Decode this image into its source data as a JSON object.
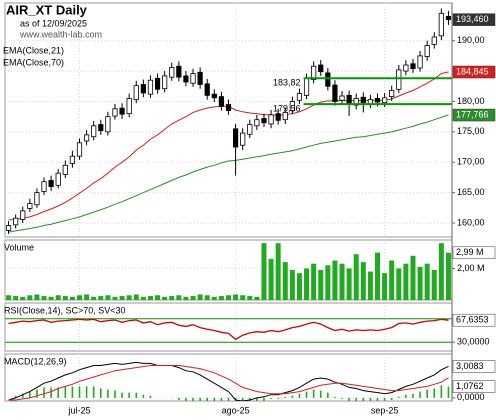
{
  "chart_data": [
    {
      "type": "candlestick",
      "title": "AIR_XT Daily",
      "subtitle": "as of 12/09/2025",
      "source": "www.wealth-lab.com",
      "categories": [
        null,
        null,
        null,
        null,
        null,
        null,
        null,
        null,
        null,
        null,
        "jul-25",
        null,
        null,
        null,
        null,
        null,
        null,
        null,
        null,
        null,
        null,
        null,
        null,
        null,
        null,
        null,
        null,
        null,
        null,
        null,
        null,
        null,
        "ago-25",
        null,
        null,
        null,
        null,
        null,
        null,
        null,
        null,
        null,
        null,
        null,
        null,
        null,
        null,
        null,
        null,
        null,
        null,
        null,
        null,
        "sep-25",
        null,
        null,
        null,
        null,
        null,
        null,
        null,
        null,
        null
      ],
      "open": [
        158.8,
        159.7,
        160.6,
        162.4,
        163.0,
        165.2,
        167.0,
        166.2,
        168.0,
        169.8,
        171.0,
        173.5,
        174.2,
        176.2,
        175.0,
        177.6,
        178.9,
        178.0,
        180.3,
        182.8,
        181.2,
        183.8,
        182.1,
        184.0,
        185.8,
        184.2,
        183.0,
        184.8,
        182.9,
        181.2,
        180.8,
        179.5,
        175.5,
        172.8,
        174.6,
        176.0,
        177.2,
        176.3,
        178.0,
        177.0,
        178.5,
        180.2,
        181.0,
        183.6,
        186.0,
        184.7,
        182.7,
        180.2,
        181.0,
        179.4,
        180.7,
        179.6,
        180.5,
        179.8,
        180.8,
        182.0,
        185.0,
        186.2,
        185.5,
        187.4,
        189.4,
        190.8,
        194.0
      ],
      "high": [
        160.3,
        161.4,
        162.7,
        164.0,
        165.7,
        167.5,
        167.8,
        168.9,
        170.3,
        171.9,
        173.9,
        175.3,
        176.8,
        177.0,
        178.3,
        179.6,
        179.7,
        181.3,
        183.4,
        183.6,
        184.3,
        184.6,
        185.0,
        186.4,
        186.6,
        185.0,
        185.4,
        185.6,
        183.7,
        182.0,
        181.6,
        180.3,
        176.3,
        175.6,
        177.0,
        177.8,
        178.0,
        178.6,
        178.8,
        179.0,
        180.8,
        182.1,
        184.6,
        186.6,
        186.8,
        185.5,
        183.5,
        181.7,
        181.8,
        181.3,
        181.5,
        181.1,
        181.3,
        181.4,
        182.6,
        186.0,
        186.8,
        187.0,
        188.3,
        190.0,
        191.4,
        195.3,
        194.9
      ],
      "low": [
        158.2,
        159.1,
        160.0,
        161.8,
        162.5,
        164.6,
        165.3,
        165.7,
        167.4,
        169.1,
        170.4,
        172.8,
        173.6,
        174.5,
        174.4,
        177.0,
        177.1,
        177.4,
        179.7,
        180.7,
        180.6,
        181.3,
        181.5,
        183.4,
        183.3,
        182.5,
        182.4,
        182.1,
        180.3,
        179.9,
        178.5,
        177.8,
        167.8,
        172.0,
        174.0,
        175.3,
        175.8,
        175.6,
        176.2,
        176.3,
        177.9,
        179.6,
        180.4,
        183.0,
        184.2,
        181.8,
        179.3,
        179.5,
        177.6,
        178.7,
        178.2,
        178.9,
        179.2,
        179.1,
        180.1,
        181.4,
        184.3,
        184.7,
        184.9,
        186.7,
        188.7,
        190.1,
        192.6
      ],
      "close": [
        159.6,
        160.8,
        162.0,
        163.2,
        165.0,
        166.8,
        166.0,
        168.2,
        169.5,
        171.0,
        173.2,
        174.5,
        176.0,
        175.2,
        177.5,
        178.8,
        177.9,
        180.5,
        182.6,
        181.4,
        183.5,
        182.0,
        184.2,
        185.6,
        184.0,
        183.2,
        184.6,
        182.8,
        181.0,
        180.6,
        179.2,
        178.5,
        172.5,
        174.8,
        176.2,
        177.0,
        176.5,
        177.8,
        176.9,
        178.2,
        180.0,
        181.3,
        183.8,
        185.8,
        184.9,
        182.5,
        180.0,
        180.9,
        179.6,
        180.5,
        179.8,
        180.3,
        179.9,
        180.6,
        181.8,
        185.2,
        186.0,
        185.4,
        187.5,
        189.2,
        190.6,
        194.5,
        193.46
      ],
      "close_label": "193,460",
      "up_color": "#ffffff",
      "down_color": "#000000",
      "series": [
        {
          "name": "EMA(Close,21)",
          "color": "#d42020",
          "last_label": "184,845",
          "values": [
            160.5,
            160.6,
            160.8,
            161.0,
            161.4,
            161.9,
            162.3,
            162.8,
            163.4,
            164.1,
            164.9,
            165.7,
            166.6,
            167.3,
            168.2,
            169.2,
            170.0,
            170.9,
            172.0,
            172.8,
            173.8,
            174.5,
            175.4,
            176.3,
            176.9,
            177.5,
            178.2,
            178.6,
            178.9,
            179.1,
            179.2,
            179.2,
            178.6,
            178.3,
            178.1,
            178.0,
            177.8,
            177.8,
            177.7,
            177.8,
            178.0,
            178.3,
            178.8,
            179.4,
            179.9,
            180.1,
            180.1,
            180.2,
            180.1,
            180.2,
            180.1,
            180.2,
            180.2,
            180.2,
            180.4,
            180.9,
            181.4,
            181.8,
            182.4,
            183.0,
            183.7,
            184.6,
            184.845
          ]
        },
        {
          "name": "EMA(Close,70)",
          "color": "#2e8b2e",
          "last_label": "177,766",
          "values": [
            158.5,
            158.7,
            158.9,
            159.1,
            159.3,
            159.6,
            159.8,
            160.1,
            160.4,
            160.7,
            161.0,
            161.4,
            161.8,
            162.2,
            162.6,
            163.1,
            163.5,
            164.0,
            164.5,
            165.0,
            165.5,
            166.0,
            166.5,
            167.0,
            167.5,
            167.9,
            168.4,
            168.8,
            169.2,
            169.5,
            169.9,
            170.2,
            170.3,
            170.5,
            170.7,
            170.9,
            171.1,
            171.3,
            171.5,
            171.7,
            171.9,
            172.2,
            172.5,
            172.8,
            173.1,
            173.3,
            173.5,
            173.7,
            173.9,
            174.1,
            174.2,
            174.4,
            174.6,
            174.8,
            175.0,
            175.3,
            175.6,
            175.9,
            176.3,
            176.6,
            177.0,
            177.4,
            177.766
          ]
        }
      ],
      "levels": [
        {
          "value": 183.82,
          "label": "183,82"
        },
        {
          "value": 179.56,
          "label": "179,56"
        }
      ],
      "level_color": "#009900",
      "ylim": [
        157.7,
        196.2
      ],
      "yticks": [
        {
          "value": 160,
          "label": "160,00"
        },
        {
          "value": 165,
          "label": "165,00"
        },
        {
          "value": 170,
          "label": "170,00"
        },
        {
          "value": 175,
          "label": "175,00"
        },
        {
          "value": 180,
          "label": "180,00"
        },
        {
          "value": 185,
          "label": "185,00"
        },
        {
          "value": 190,
          "label": "190,00"
        }
      ],
      "grid": true
    },
    {
      "type": "bar",
      "title": "Volume",
      "color": "#22aa22",
      "last_label": "2,99 M",
      "values": [
        0.3,
        0.25,
        0.2,
        0.3,
        0.35,
        0.25,
        0.2,
        0.3,
        0.25,
        0.2,
        0.3,
        0.35,
        0.2,
        0.25,
        0.3,
        0.2,
        0.25,
        0.3,
        0.35,
        0.2,
        0.25,
        0.3,
        0.2,
        0.25,
        0.3,
        0.2,
        0.25,
        0.35,
        0.3,
        0.2,
        0.25,
        0.3,
        0.35,
        0.3,
        0.25,
        0.2,
        3.6,
        2.6,
        3.6,
        2.4,
        1.9,
        1.7,
        2.0,
        2.3,
        1.9,
        2.2,
        2.5,
        2.3,
        2.0,
        2.9,
        2.4,
        1.8,
        3.0,
        1.7,
        2.5,
        2.0,
        2.3,
        2.8,
        2.1,
        2.3,
        1.9,
        3.6,
        2.99
      ],
      "ylim": [
        0,
        3.8
      ],
      "yticks": [
        {
          "value": 2,
          "label": "2,00 M"
        }
      ],
      "grid": true
    },
    {
      "type": "line",
      "title": "RSI(Close,14), SC>70, SV<30",
      "color": "#d00000",
      "last_label": "67,6353",
      "values": [
        62,
        64,
        66,
        65,
        67,
        68,
        64,
        66,
        67,
        68,
        69,
        68,
        69,
        65,
        67,
        68,
        64,
        67,
        68,
        63,
        65,
        60,
        63,
        64,
        59,
        57,
        60,
        55,
        52,
        50,
        47,
        45,
        35,
        42,
        46,
        48,
        47,
        50,
        48,
        51,
        55,
        57,
        61,
        64,
        61,
        55,
        50,
        52,
        49,
        51,
        50,
        51,
        50,
        52,
        55,
        62,
        63,
        61,
        64,
        66,
        67,
        69,
        67.6353
      ],
      "levels": [
        70,
        30
      ],
      "level_color": "#009900",
      "ylim": [
        15,
        97
      ],
      "yticks": [
        {
          "value": 30,
          "label": "30,0000"
        }
      ],
      "grid": true
    },
    {
      "type": "macd",
      "title": "MACD(12,26,9)",
      "series": [
        {
          "color": "#000000",
          "last_label": "3,0083",
          "values": [
            -0.2,
            0.0,
            0.3,
            0.6,
            1.0,
            1.4,
            1.6,
            1.9,
            2.2,
            2.4,
            2.7,
            2.9,
            3.1,
            3.1,
            3.2,
            3.3,
            3.2,
            3.3,
            3.4,
            3.3,
            3.3,
            3.1,
            3.1,
            3.1,
            2.9,
            2.6,
            2.5,
            2.2,
            1.8,
            1.4,
            1.0,
            0.6,
            -0.2,
            -0.3,
            -0.2,
            0.0,
            0.1,
            0.3,
            0.3,
            0.5,
            0.7,
            1.0,
            1.4,
            1.8,
            1.9,
            1.8,
            1.5,
            1.3,
            1.0,
            0.9,
            0.7,
            0.6,
            0.5,
            0.4,
            0.5,
            0.8,
            1.1,
            1.3,
            1.6,
            1.9,
            2.2,
            2.7,
            3.0083
          ]
        },
        {
          "color": "#d42020",
          "values": [
            -0.2,
            -0.2,
            -0.1,
            0.0,
            0.2,
            0.4,
            0.6,
            0.9,
            1.1,
            1.3,
            1.6,
            1.8,
            2.0,
            2.2,
            2.4,
            2.6,
            2.7,
            2.8,
            2.9,
            3.0,
            3.1,
            3.1,
            3.1,
            3.1,
            3.1,
            3.0,
            2.9,
            2.8,
            2.6,
            2.4,
            2.1,
            1.8,
            1.4,
            1.0,
            0.8,
            0.6,
            0.5,
            0.4,
            0.4,
            0.4,
            0.5,
            0.6,
            0.8,
            1.0,
            1.2,
            1.3,
            1.4,
            1.4,
            1.3,
            1.2,
            1.1,
            1.0,
            0.9,
            0.8,
            0.7,
            0.7,
            0.8,
            0.9,
            1.0,
            1.1,
            1.3,
            1.5,
            1.9321
          ]
        }
      ],
      "histogram": {
        "color": "#22aa22",
        "last_label": "1,0762",
        "values": [
          0.0,
          0.2,
          0.4,
          0.6,
          0.8,
          1.0,
          1.0,
          1.0,
          1.1,
          1.1,
          1.1,
          1.1,
          1.1,
          0.9,
          0.8,
          0.7,
          0.5,
          0.5,
          0.5,
          0.3,
          0.2,
          0.0,
          0.0,
          0.0,
          -0.2,
          -0.4,
          -0.4,
          -0.6,
          -0.8,
          -1.0,
          -1.1,
          -1.2,
          -1.6,
          -1.3,
          -1.0,
          -0.6,
          -0.4,
          -0.1,
          -0.1,
          0.1,
          0.2,
          0.4,
          0.6,
          0.8,
          0.7,
          0.5,
          0.1,
          -0.1,
          -0.3,
          -0.3,
          -0.4,
          -0.4,
          -0.4,
          -0.4,
          -0.2,
          0.1,
          0.3,
          0.4,
          0.6,
          0.8,
          0.9,
          1.2,
          1.0762
        ]
      },
      "ylim": [
        -0.3,
        4.2
      ],
      "yticks": [
        {
          "value": 0,
          "label": "0,0000"
        }
      ],
      "grid": true
    }
  ]
}
